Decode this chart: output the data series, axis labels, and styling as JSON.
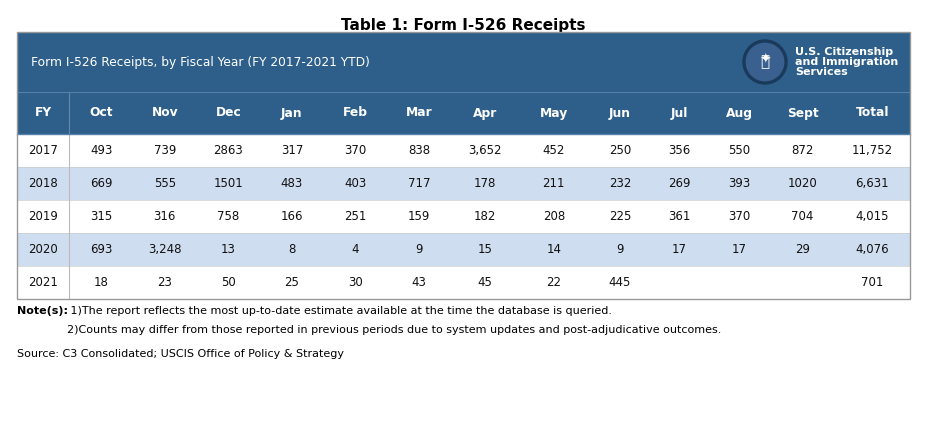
{
  "title": "Table 1: Form I-526 Receipts",
  "subtitle": "Form I-526 Receipts, by Fiscal Year (FY 2017-2021 YTD)",
  "banner_bg": "#2D5F8A",
  "col_header_bg": "#2D5F8A",
  "row_even_bg": "#CFDDF0",
  "row_odd_bg": "#FFFFFF",
  "border_color": "#AAAAAA",
  "col_header_line": "#7AA0C4",
  "columns": [
    "FY",
    "Oct",
    "Nov",
    "Dec",
    "Jan",
    "Feb",
    "Mar",
    "Apr",
    "May",
    "Jun",
    "Jul",
    "Aug",
    "Sept",
    "Total"
  ],
  "rows": [
    [
      "2017",
      "493",
      "739",
      "2863",
      "317",
      "370",
      "838",
      "3,652",
      "452",
      "250",
      "356",
      "550",
      "872",
      "11,752"
    ],
    [
      "2018",
      "669",
      "555",
      "1501",
      "483",
      "403",
      "717",
      "178",
      "211",
      "232",
      "269",
      "393",
      "1020",
      "6,631"
    ],
    [
      "2019",
      "315",
      "316",
      "758",
      "166",
      "251",
      "159",
      "182",
      "208",
      "225",
      "361",
      "370",
      "704",
      "4,015"
    ],
    [
      "2020",
      "693",
      "3,248",
      "13",
      "8",
      "4",
      "9",
      "15",
      "14",
      "9",
      "17",
      "17",
      "29",
      "4,076"
    ],
    [
      "2021",
      "18",
      "23",
      "50",
      "25",
      "30",
      "43",
      "45",
      "22",
      "445",
      "",
      "",
      "",
      "701"
    ]
  ],
  "note_bold": "Note(s):",
  "note_line1": " 1)The report reflects the most up-to-date estimate available at the time the database is queried.",
  "note_line2": "2)Counts may differ from those reported in previous periods due to system updates and post-adjudicative outcomes.",
  "source_text": "Source: C3 Consolidated; USCIS Office of Policy & Strategy",
  "uscis_line1": "U.S. Citizenship",
  "uscis_line2": "and Immigration",
  "uscis_line3": "Services",
  "fig_width": 9.27,
  "fig_height": 4.43,
  "dpi": 100
}
